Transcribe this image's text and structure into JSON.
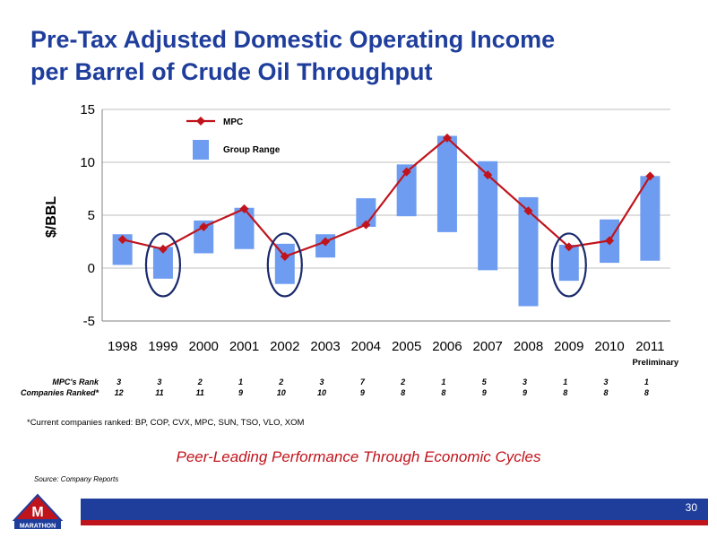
{
  "title_line1": "Pre-Tax Adjusted Domestic Operating Income",
  "title_line2": "per Barrel of Crude Oil Throughput",
  "chart_data": {
    "type": "line+floating-bar",
    "ylabel": "$/BBL",
    "ylim": [
      -5,
      15
    ],
    "yticks": [
      -5,
      0,
      5,
      10,
      15
    ],
    "grid": true,
    "categories": [
      "1998",
      "1999",
      "2000",
      "2001",
      "2002",
      "2003",
      "2004",
      "2005",
      "2006",
      "2007",
      "2008",
      "2009",
      "2010",
      "2011"
    ],
    "category_sublabel": {
      "index": 13,
      "text": "Preliminary"
    },
    "legend": [
      {
        "name": "MPC",
        "type": "line",
        "color": "#c0141c"
      },
      {
        "name": "Group Range",
        "type": "bar",
        "color": "#6e9cf0"
      }
    ],
    "series": [
      {
        "name": "MPC",
        "type": "line",
        "values": [
          2.7,
          1.8,
          3.9,
          5.6,
          1.1,
          2.5,
          4.1,
          9.1,
          12.3,
          8.8,
          5.4,
          2.0,
          2.6,
          8.7
        ]
      },
      {
        "name": "Group Range",
        "type": "floating-bar",
        "low": [
          0.3,
          -1.0,
          1.4,
          1.8,
          -1.5,
          1.0,
          3.9,
          4.9,
          3.4,
          -0.2,
          -3.6,
          -1.2,
          0.5,
          0.7
        ],
        "high": [
          3.2,
          2.0,
          4.5,
          5.7,
          2.3,
          3.2,
          6.6,
          9.8,
          12.5,
          10.1,
          6.7,
          2.2,
          4.6,
          8.7
        ]
      }
    ],
    "circled_categories": [
      "1999",
      "2002",
      "2009"
    ]
  },
  "rank_table": {
    "rank_label": "MPC's Rank",
    "companies_label": "Companies Ranked*",
    "ranks": [
      "3",
      "3",
      "2",
      "1",
      "2",
      "3",
      "7",
      "2",
      "1",
      "5",
      "3",
      "1",
      "3",
      "1"
    ],
    "companies": [
      "12",
      "11",
      "11",
      "9",
      "10",
      "10",
      "9",
      "8",
      "8",
      "9",
      "9",
      "8",
      "8",
      "8"
    ]
  },
  "footnote": "*Current companies ranked:  BP, COP, CVX, MPC, SUN, TSO, VLO, XOM",
  "tagline": "Peer-Leading Performance Through Economic Cycles",
  "source": "Source:  Company Reports",
  "page_number": "30",
  "logo_text": "MARATHON",
  "colors": {
    "title": "#1f3e9c",
    "line": "#c0141c",
    "bar": "#6e9cf0",
    "band": "#1f3e9c",
    "accent": "#c0141c"
  }
}
